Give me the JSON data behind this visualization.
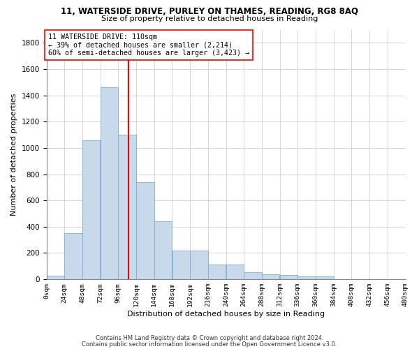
{
  "title1": "11, WATERSIDE DRIVE, PURLEY ON THAMES, READING, RG8 8AQ",
  "title2": "Size of property relative to detached houses in Reading",
  "xlabel": "Distribution of detached houses by size in Reading",
  "ylabel": "Number of detached properties",
  "bar_color": "#c9d9ec",
  "bar_edge_color": "#7aadd4",
  "property_size": 110,
  "annotation_line_color": "red",
  "annotation_box_text": "11 WATERSIDE DRIVE: 110sqm\n← 39% of detached houses are smaller (2,214)\n60% of semi-detached houses are larger (3,423) →",
  "bins_start": [
    0,
    24,
    48,
    72,
    96,
    120,
    144,
    168,
    192,
    216,
    240,
    264,
    288,
    312,
    336,
    360,
    384,
    408,
    432,
    456
  ],
  "counts": [
    25,
    350,
    1060,
    1460,
    1100,
    740,
    440,
    220,
    220,
    110,
    110,
    55,
    40,
    30,
    20,
    20,
    0,
    0,
    0,
    0
  ],
  "ylim": [
    0,
    1900
  ],
  "yticks": [
    0,
    200,
    400,
    600,
    800,
    1000,
    1200,
    1400,
    1600,
    1800
  ],
  "footer1": "Contains HM Land Registry data © Crown copyright and database right 2024.",
  "footer2": "Contains public sector information licensed under the Open Government Licence v3.0.",
  "background_color": "#ffffff",
  "grid_color": "#d0d0d0"
}
